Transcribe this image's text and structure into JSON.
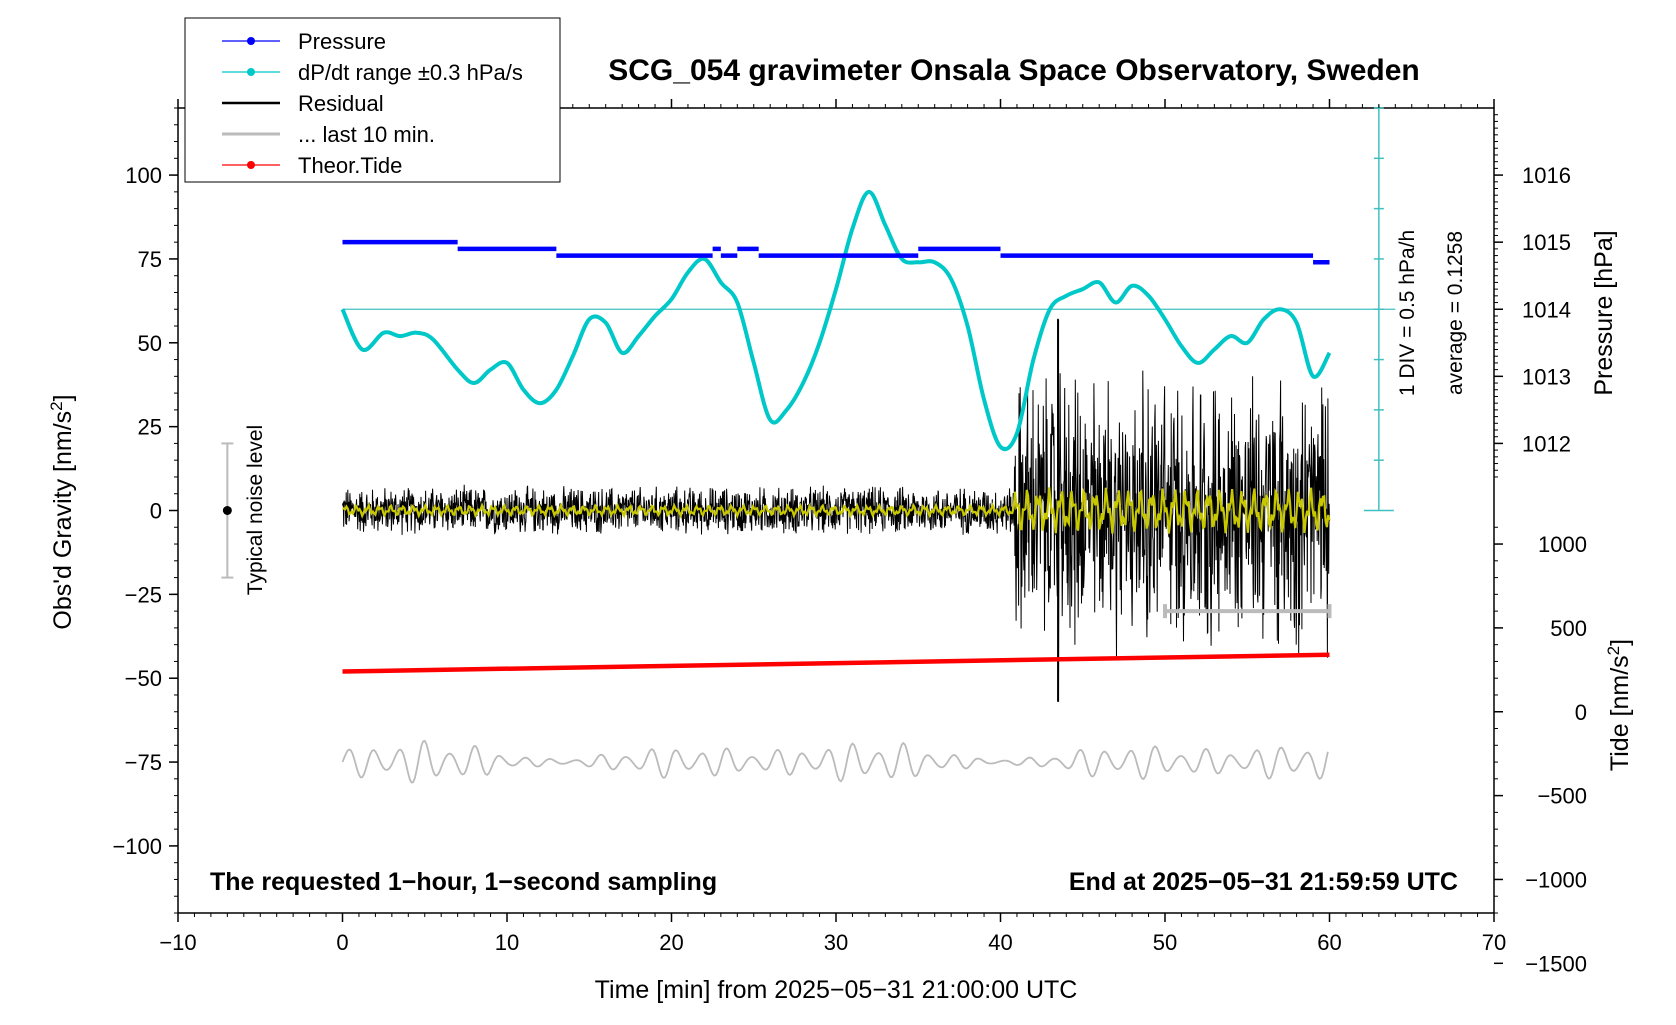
{
  "chart_data": {
    "type": "line",
    "title": "SCG_054 gravimeter Onsala Space Observatory, Sweden",
    "xlabel": "Time [min] from 2025−05−31 21:00:00 UTC",
    "ylabel_left": "Obs'd Gravity [nm/s",
    "ylabel_left_sup": "2",
    "ylabel_left_end": "]",
    "ylabel_pressure": "Pressure [hPa]",
    "ylabel_tide": "Tide [nm/s",
    "ylabel_tide_sup": "2",
    "ylabel_tide_end": "]",
    "xlim": [
      -10,
      70
    ],
    "ylim": [
      -120,
      120
    ],
    "x_ticks": [
      {
        "value": -10,
        "label": "−10"
      },
      {
        "value": 0,
        "label": "0"
      },
      {
        "value": 10,
        "label": "10"
      },
      {
        "value": 20,
        "label": "20"
      },
      {
        "value": 30,
        "label": "30"
      },
      {
        "value": 40,
        "label": "40"
      },
      {
        "value": 50,
        "label": "50"
      },
      {
        "value": 60,
        "label": "60"
      },
      {
        "value": 70,
        "label": "70"
      }
    ],
    "y_ticks": [
      {
        "value": 100,
        "label": "100"
      },
      {
        "value": 75,
        "label": "75"
      },
      {
        "value": 50,
        "label": "50"
      },
      {
        "value": 25,
        "label": "25"
      },
      {
        "value": 0,
        "label": "0"
      },
      {
        "value": -25,
        "label": "−25"
      },
      {
        "value": -50,
        "label": "−50"
      },
      {
        "value": -75,
        "label": "−75"
      },
      {
        "value": -100,
        "label": "−100"
      }
    ],
    "pressure_axis": {
      "ticks": [
        {
          "value": 1016,
          "label": "1016"
        },
        {
          "value": 1015,
          "label": "1015"
        },
        {
          "value": 1014,
          "label": "1014"
        },
        {
          "value": 1013,
          "label": "1013"
        },
        {
          "value": 1012,
          "label": "1012"
        }
      ],
      "offset": 1014,
      "scale_per_hpa": 20
    },
    "tide_axis": {
      "ticks": [
        {
          "value": 1000,
          "label": "1000"
        },
        {
          "value": 500,
          "label": "500"
        },
        {
          "value": 0,
          "label": "0"
        },
        {
          "value": -500,
          "label": "−500"
        },
        {
          "value": -1000,
          "label": "−1000"
        },
        {
          "value": -1500,
          "label": "−1500"
        }
      ],
      "scale": 0.05,
      "offset": -60
    },
    "legend": [
      {
        "label": "Pressure",
        "color": "#0000ff",
        "marker": true
      },
      {
        "label": "dP/dt range ±0.3 hPa/s",
        "color": "#00c8c8",
        "marker": true
      },
      {
        "label": "Residual",
        "color": "#000000",
        "marker": false
      },
      {
        "label": "... last 10 min.",
        "color": "#bbbbbb",
        "marker": false
      },
      {
        "label": "Theor.Tide",
        "color": "#ff0000",
        "marker": true
      }
    ],
    "series": [
      {
        "name": "Pressure",
        "color": "#0000ff",
        "unit": "hPa",
        "segments": [
          {
            "x": [
              0,
              7
            ],
            "y": 1015.0
          },
          {
            "x": [
              7,
              13
            ],
            "y": 1014.9
          },
          {
            "x": [
              13,
              22.5
            ],
            "y": 1014.8
          },
          {
            "x": [
              22.5,
              23
            ],
            "y": 1014.9
          },
          {
            "x": [
              23,
              24
            ],
            "y": 1014.8
          },
          {
            "x": [
              24,
              25.3
            ],
            "y": 1014.9
          },
          {
            "x": [
              25.3,
              35
            ],
            "y": 1014.8
          },
          {
            "x": [
              35,
              40
            ],
            "y": 1014.9
          },
          {
            "x": [
              40,
              59
            ],
            "y": 1014.8
          },
          {
            "x": [
              59,
              60
            ],
            "y": 1014.7
          }
        ]
      },
      {
        "name": "dP/dt",
        "color": "#00c8c8",
        "unit": "nm/s2",
        "x": [
          0,
          1.2,
          2.5,
          3.5,
          4.5,
          5.5,
          7,
          8,
          9,
          10,
          11,
          12,
          13,
          14,
          15,
          16,
          17,
          18,
          19,
          20,
          21,
          22,
          23,
          24,
          25,
          26,
          27,
          28,
          29,
          30,
          31,
          32,
          33,
          34,
          35,
          36,
          37,
          38,
          39,
          40,
          41,
          42,
          43,
          44,
          45,
          46,
          47,
          48,
          49,
          50,
          51,
          52,
          53,
          54,
          55,
          56,
          57,
          58,
          59,
          60
        ],
        "y": [
          60,
          48,
          53,
          52,
          53,
          51,
          42,
          38,
          42,
          44,
          36,
          32,
          36,
          46,
          57,
          56,
          47,
          52,
          58,
          63,
          71,
          75,
          68,
          62,
          44,
          27,
          30,
          38,
          50,
          66,
          84,
          95,
          85,
          75,
          74,
          74,
          69,
          55,
          33,
          19,
          23,
          45,
          60,
          64,
          66,
          68,
          62,
          67,
          64,
          57,
          49,
          44,
          48,
          52,
          50,
          57,
          60,
          56,
          40,
          47
        ]
      },
      {
        "name": "Residual",
        "color": "#000000",
        "unit": "nm/s2",
        "quiet_segment": {
          "x": [
            0,
            40.8
          ],
          "amplitude": 8
        },
        "active_segment": {
          "x": [
            40.8,
            60
          ],
          "amplitude": 45
        },
        "spike": {
          "x": 43.5,
          "min": -57,
          "max": 57
        }
      },
      {
        "name": "Smoothed",
        "color": "#c8c800",
        "unit": "nm/s2",
        "quiet_amplitude": 2,
        "active_amplitude": 7
      },
      {
        "name": "Theor.Tide",
        "color": "#ff0000",
        "unit": "nm/s2",
        "x": [
          0,
          60
        ],
        "y": [
          -48,
          -43
        ]
      },
      {
        "name": "Tide residual",
        "color": "#bbbbbb",
        "unit": "nm/s2",
        "x": [
          0,
          60
        ],
        "baseline": -75,
        "amplitude": 4
      }
    ],
    "horizontal_reference": {
      "value": 60,
      "color": "#40c0c0"
    },
    "last_10_min_bar": {
      "x": [
        50,
        60
      ],
      "y": -30,
      "color": "#bbbbbb"
    },
    "noise_level_bar": {
      "x": -7,
      "y": [
        -20,
        20
      ],
      "label": "Typical noise level"
    },
    "div_scale": {
      "x": 63,
      "y_top": 121,
      "y_bottom": 0,
      "step": 15,
      "label_1": "1 DIV = 0.5 hPa/h",
      "label_2": "average = 0.1258"
    },
    "footer_left": "The requested 1−hour, 1−second sampling",
    "footer_right": "End at 2025−05−31 21:59:59 UTC"
  }
}
